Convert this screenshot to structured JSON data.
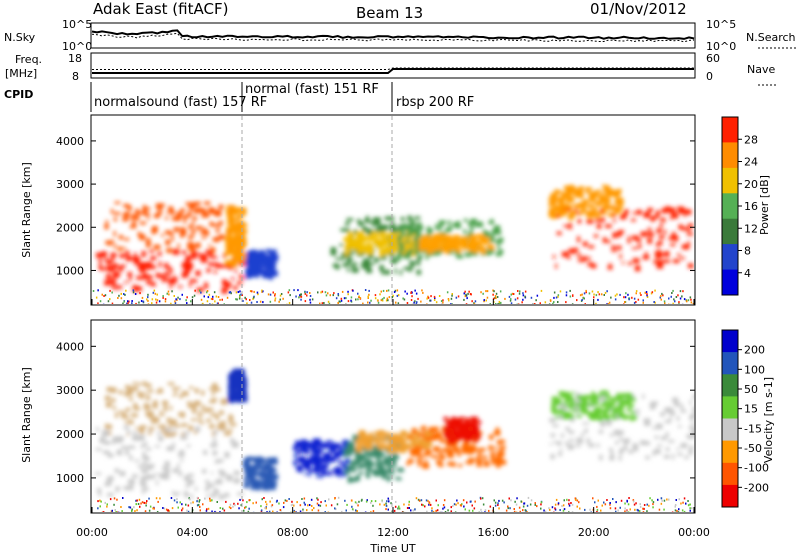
{
  "header": {
    "site": "Adak East (fitACF)",
    "beam": "Beam 13",
    "date": "01/Nov/2012"
  },
  "top_panels": {
    "nsky_label": "N.Sky",
    "nsky_ticks": [
      "10^5",
      "10^0"
    ],
    "nsearch_label": "N.Search",
    "nsearch_ticks": [
      "10^5",
      "10^0"
    ],
    "freq_label_1": "Freq.",
    "freq_label_2": "[MHz]",
    "freq_ticks": [
      "18",
      "8"
    ],
    "nave_label": "Nave",
    "nave_ticks": [
      "60",
      "0"
    ],
    "cpid_label": "CPID",
    "cpid_segments": [
      "normalsound (fast) 157 RF",
      "normal (fast) 151 RF",
      "rbsp 200 RF"
    ]
  },
  "chart_data": [
    {
      "type": "heatmap",
      "panel": "power",
      "ylabel": "Slant Range [km]",
      "ylim": [
        200,
        4600
      ],
      "yticks": [
        "1000",
        "2000",
        "3000",
        "4000"
      ],
      "colorbar_label": "Power [dB]",
      "colorbar_ticks": [
        "4",
        "8",
        "12",
        "16",
        "20",
        "24",
        "28"
      ],
      "colorbar_colors": [
        "#0000dd",
        "#2244cc",
        "#3a7a3a",
        "#55b055",
        "#f0c000",
        "#ff8c00",
        "#ff2000"
      ],
      "blobs": [
        {
          "t": [
            0.1,
            5.9
          ],
          "r": [
            600,
            1500
          ],
          "level": "#ff1a00"
        },
        {
          "t": [
            0.5,
            5.9
          ],
          "r": [
            1500,
            2600
          ],
          "level": "#ff5500"
        },
        {
          "t": [
            5.3,
            6.0
          ],
          "r": [
            1200,
            2500
          ],
          "level": "#ff9900"
        },
        {
          "t": [
            6.1,
            7.2
          ],
          "r": [
            900,
            1500
          ],
          "level": "#1e3fcf"
        },
        {
          "t": [
            9.5,
            13.0
          ],
          "r": [
            1000,
            2300
          ],
          "level": "#3e8a3e"
        },
        {
          "t": [
            10.0,
            12.8
          ],
          "r": [
            1450,
            1900
          ],
          "level": "#f0c000"
        },
        {
          "t": [
            12.0,
            16.3
          ],
          "r": [
            1350,
            2200
          ],
          "level": "#4aa04a"
        },
        {
          "t": [
            13.0,
            15.8
          ],
          "r": [
            1500,
            1850
          ],
          "level": "#ffa000"
        },
        {
          "t": [
            18.3,
            24.0
          ],
          "r": [
            1100,
            2500
          ],
          "level": "#ff2200"
        },
        {
          "t": [
            18.2,
            21.0
          ],
          "r": [
            2300,
            3000
          ],
          "level": "#ff9900"
        }
      ]
    },
    {
      "type": "heatmap",
      "panel": "velocity",
      "ylabel": "Slant Range [km]",
      "xlabel": "Time UT",
      "xticks": [
        "00:00",
        "04:00",
        "08:00",
        "12:00",
        "16:00",
        "20:00",
        "00:00"
      ],
      "ylim": [
        200,
        4600
      ],
      "yticks": [
        "1000",
        "2000",
        "3000",
        "4000"
      ],
      "colorbar_label": "Velocity [m s-1]",
      "colorbar_ticks": [
        "200",
        "100",
        "50",
        "15",
        "-15",
        "-50",
        "-100",
        "-200"
      ],
      "colorbar_colors": [
        "#0000cc",
        "#2255bb",
        "#3a8a3a",
        "#66cc33",
        "#c8c8c8",
        "#ff9900",
        "#ff5500",
        "#ee0000"
      ],
      "blobs": [
        {
          "t": [
            0.1,
            5.8
          ],
          "r": [
            600,
            2200
          ],
          "level": "#c8c8c8"
        },
        {
          "t": [
            0.5,
            5.5
          ],
          "r": [
            2000,
            3200
          ],
          "level": "#d6b07a"
        },
        {
          "t": [
            5.4,
            6.0
          ],
          "r": [
            2800,
            3500
          ],
          "level": "#1530c0"
        },
        {
          "t": [
            6.0,
            7.2
          ],
          "r": [
            800,
            1500
          ],
          "level": "#2b5ab5"
        },
        {
          "t": [
            8.0,
            10.2
          ],
          "r": [
            1100,
            1900
          ],
          "level": "#0a20d0"
        },
        {
          "t": [
            10.0,
            12.2
          ],
          "r": [
            1000,
            2000
          ],
          "level": "#3a8a6a"
        },
        {
          "t": [
            10.5,
            13.5
          ],
          "r": [
            1700,
            2100
          ],
          "level": "#f0a030"
        },
        {
          "t": [
            12.5,
            16.3
          ],
          "r": [
            1300,
            2200
          ],
          "level": "#ff6a00"
        },
        {
          "t": [
            14.0,
            15.3
          ],
          "r": [
            1900,
            2400
          ],
          "level": "#ee1100"
        },
        {
          "t": [
            18.2,
            24.0
          ],
          "r": [
            1500,
            3000
          ],
          "level": "#c8c8c8"
        },
        {
          "t": [
            18.3,
            21.5
          ],
          "r": [
            2400,
            3000
          ],
          "level": "#66cc33"
        }
      ]
    }
  ]
}
